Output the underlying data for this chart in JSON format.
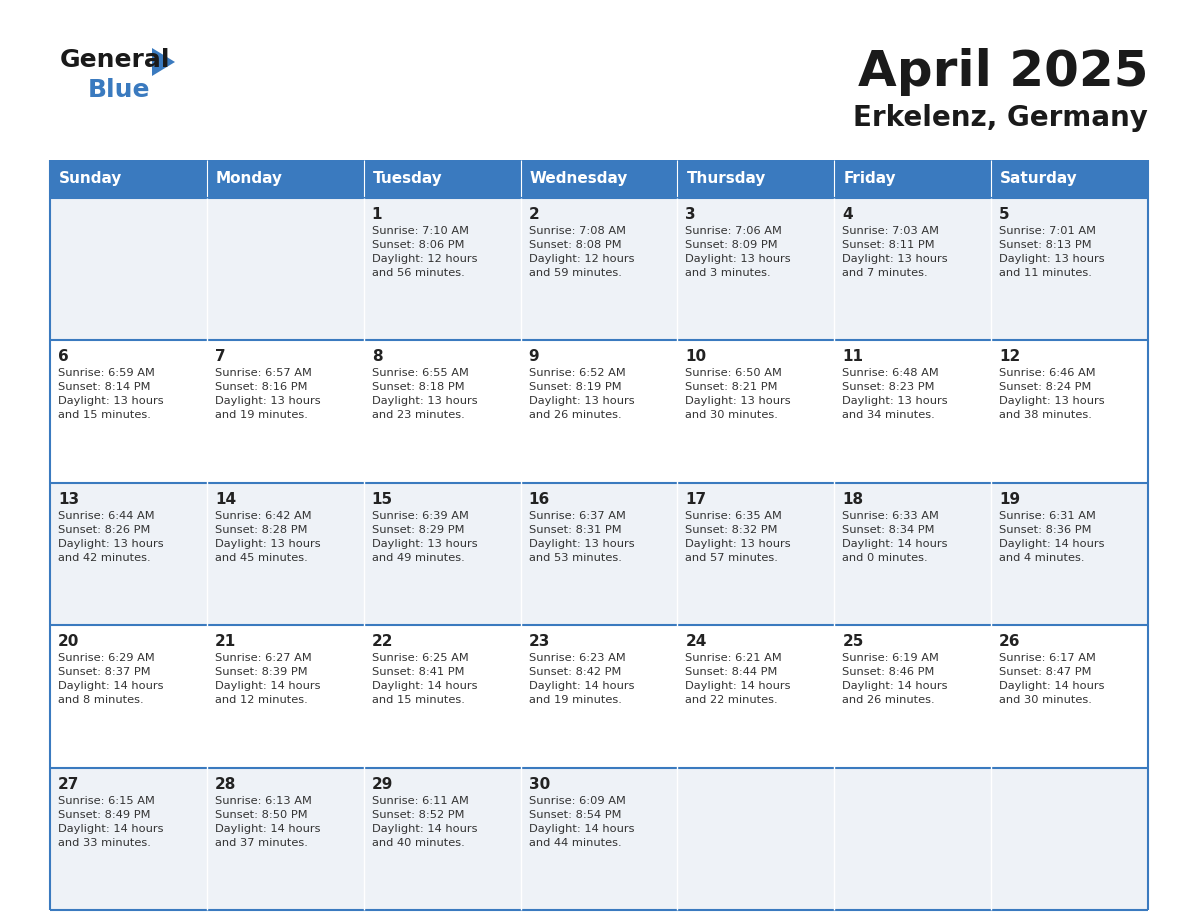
{
  "title": "April 2025",
  "subtitle": "Erkelenz, Germany",
  "days_of_week": [
    "Sunday",
    "Monday",
    "Tuesday",
    "Wednesday",
    "Thursday",
    "Friday",
    "Saturday"
  ],
  "header_bg": "#3a7abf",
  "header_text": "#ffffff",
  "row_bg_even": "#eef2f7",
  "row_bg_odd": "#ffffff",
  "cell_border": "#3a7abf",
  "day_num_color": "#222222",
  "info_color": "#333333",
  "title_color": "#1a1a1a",
  "subtitle_color": "#1a1a1a",
  "weeks": [
    [
      {
        "day": null,
        "info": ""
      },
      {
        "day": null,
        "info": ""
      },
      {
        "day": 1,
        "info": "Sunrise: 7:10 AM\nSunset: 8:06 PM\nDaylight: 12 hours\nand 56 minutes."
      },
      {
        "day": 2,
        "info": "Sunrise: 7:08 AM\nSunset: 8:08 PM\nDaylight: 12 hours\nand 59 minutes."
      },
      {
        "day": 3,
        "info": "Sunrise: 7:06 AM\nSunset: 8:09 PM\nDaylight: 13 hours\nand 3 minutes."
      },
      {
        "day": 4,
        "info": "Sunrise: 7:03 AM\nSunset: 8:11 PM\nDaylight: 13 hours\nand 7 minutes."
      },
      {
        "day": 5,
        "info": "Sunrise: 7:01 AM\nSunset: 8:13 PM\nDaylight: 13 hours\nand 11 minutes."
      }
    ],
    [
      {
        "day": 6,
        "info": "Sunrise: 6:59 AM\nSunset: 8:14 PM\nDaylight: 13 hours\nand 15 minutes."
      },
      {
        "day": 7,
        "info": "Sunrise: 6:57 AM\nSunset: 8:16 PM\nDaylight: 13 hours\nand 19 minutes."
      },
      {
        "day": 8,
        "info": "Sunrise: 6:55 AM\nSunset: 8:18 PM\nDaylight: 13 hours\nand 23 minutes."
      },
      {
        "day": 9,
        "info": "Sunrise: 6:52 AM\nSunset: 8:19 PM\nDaylight: 13 hours\nand 26 minutes."
      },
      {
        "day": 10,
        "info": "Sunrise: 6:50 AM\nSunset: 8:21 PM\nDaylight: 13 hours\nand 30 minutes."
      },
      {
        "day": 11,
        "info": "Sunrise: 6:48 AM\nSunset: 8:23 PM\nDaylight: 13 hours\nand 34 minutes."
      },
      {
        "day": 12,
        "info": "Sunrise: 6:46 AM\nSunset: 8:24 PM\nDaylight: 13 hours\nand 38 minutes."
      }
    ],
    [
      {
        "day": 13,
        "info": "Sunrise: 6:44 AM\nSunset: 8:26 PM\nDaylight: 13 hours\nand 42 minutes."
      },
      {
        "day": 14,
        "info": "Sunrise: 6:42 AM\nSunset: 8:28 PM\nDaylight: 13 hours\nand 45 minutes."
      },
      {
        "day": 15,
        "info": "Sunrise: 6:39 AM\nSunset: 8:29 PM\nDaylight: 13 hours\nand 49 minutes."
      },
      {
        "day": 16,
        "info": "Sunrise: 6:37 AM\nSunset: 8:31 PM\nDaylight: 13 hours\nand 53 minutes."
      },
      {
        "day": 17,
        "info": "Sunrise: 6:35 AM\nSunset: 8:32 PM\nDaylight: 13 hours\nand 57 minutes."
      },
      {
        "day": 18,
        "info": "Sunrise: 6:33 AM\nSunset: 8:34 PM\nDaylight: 14 hours\nand 0 minutes."
      },
      {
        "day": 19,
        "info": "Sunrise: 6:31 AM\nSunset: 8:36 PM\nDaylight: 14 hours\nand 4 minutes."
      }
    ],
    [
      {
        "day": 20,
        "info": "Sunrise: 6:29 AM\nSunset: 8:37 PM\nDaylight: 14 hours\nand 8 minutes."
      },
      {
        "day": 21,
        "info": "Sunrise: 6:27 AM\nSunset: 8:39 PM\nDaylight: 14 hours\nand 12 minutes."
      },
      {
        "day": 22,
        "info": "Sunrise: 6:25 AM\nSunset: 8:41 PM\nDaylight: 14 hours\nand 15 minutes."
      },
      {
        "day": 23,
        "info": "Sunrise: 6:23 AM\nSunset: 8:42 PM\nDaylight: 14 hours\nand 19 minutes."
      },
      {
        "day": 24,
        "info": "Sunrise: 6:21 AM\nSunset: 8:44 PM\nDaylight: 14 hours\nand 22 minutes."
      },
      {
        "day": 25,
        "info": "Sunrise: 6:19 AM\nSunset: 8:46 PM\nDaylight: 14 hours\nand 26 minutes."
      },
      {
        "day": 26,
        "info": "Sunrise: 6:17 AM\nSunset: 8:47 PM\nDaylight: 14 hours\nand 30 minutes."
      }
    ],
    [
      {
        "day": 27,
        "info": "Sunrise: 6:15 AM\nSunset: 8:49 PM\nDaylight: 14 hours\nand 33 minutes."
      },
      {
        "day": 28,
        "info": "Sunrise: 6:13 AM\nSunset: 8:50 PM\nDaylight: 14 hours\nand 37 minutes."
      },
      {
        "day": 29,
        "info": "Sunrise: 6:11 AM\nSunset: 8:52 PM\nDaylight: 14 hours\nand 40 minutes."
      },
      {
        "day": 30,
        "info": "Sunrise: 6:09 AM\nSunset: 8:54 PM\nDaylight: 14 hours\nand 44 minutes."
      },
      {
        "day": null,
        "info": ""
      },
      {
        "day": null,
        "info": ""
      },
      {
        "day": null,
        "info": ""
      }
    ]
  ]
}
